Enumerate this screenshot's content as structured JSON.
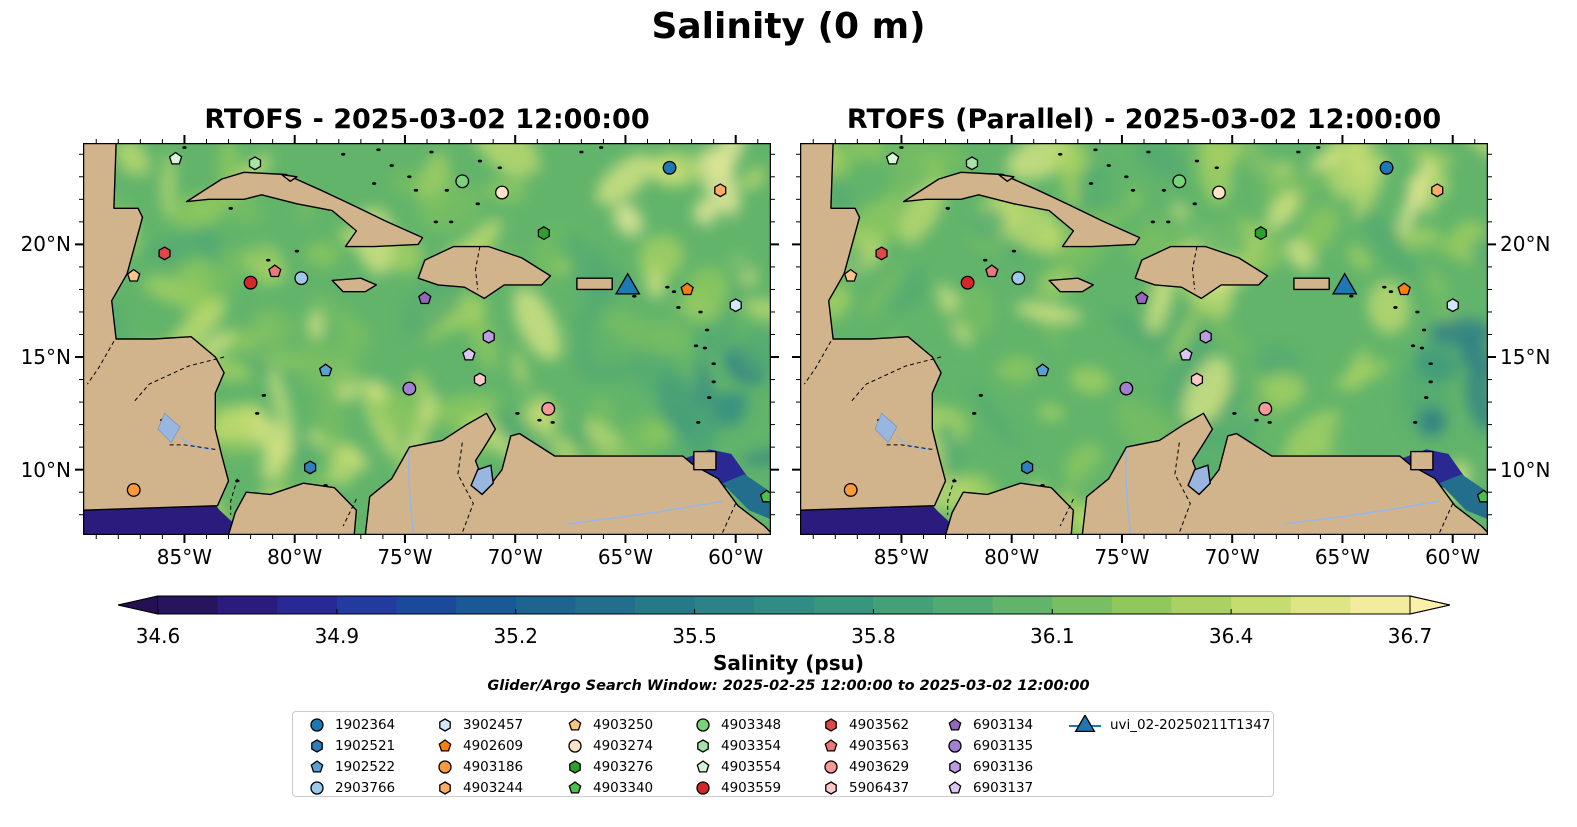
{
  "title": "Salinity (0 m)",
  "panels": [
    {
      "id": "left",
      "title": "RTOFS - 2025-03-02 12:00:00"
    },
    {
      "id": "right",
      "title": "RTOFS (Parallel) - 2025-03-02 12:00:00"
    }
  ],
  "map": {
    "extent": {
      "lon_min": -89.6,
      "lon_max": -58.4,
      "lat_min": 7.1,
      "lat_max": 24.5
    },
    "lon_ticks": [
      {
        "value": -85,
        "label": "85°W"
      },
      {
        "value": -80,
        "label": "80°W"
      },
      {
        "value": -75,
        "label": "75°W"
      },
      {
        "value": -70,
        "label": "70°W"
      },
      {
        "value": -65,
        "label": "65°W"
      },
      {
        "value": -60,
        "label": "60°W"
      }
    ],
    "lat_ticks": [
      {
        "value": 10,
        "label": "10°N"
      },
      {
        "value": 15,
        "label": "15°N"
      },
      {
        "value": 20,
        "label": "20°N"
      }
    ],
    "land_color": "#d2b48c",
    "lake_color": "#98b6e0"
  },
  "colorbar": {
    "min": 34.6,
    "max": 36.7,
    "tick_values": [
      34.6,
      34.9,
      35.2,
      35.5,
      35.8,
      36.1,
      36.4,
      36.7
    ],
    "tick_labels": [
      "34.6",
      "34.9",
      "35.2",
      "35.5",
      "35.8",
      "36.1",
      "36.4",
      "36.7"
    ],
    "label": "Salinity (psu)",
    "colors": [
      "#27145f",
      "#2b1b7d",
      "#2a2994",
      "#233a9e",
      "#1b4a9c",
      "#1b5896",
      "#1f6390",
      "#236e8c",
      "#277889",
      "#2c8287",
      "#318c84",
      "#38967f",
      "#43a079",
      "#51aa72",
      "#62b46b",
      "#78be62",
      "#90c85e",
      "#aad262",
      "#c4dc70",
      "#dde586",
      "#f3ec9e"
    ],
    "under_color": "#241052",
    "over_color": "#fbf0a8"
  },
  "search_window": "Glider/Argo Search Window: 2025-02-25 12:00:00 to 2025-03-02 12:00:00",
  "platforms": [
    {
      "name": "1902364",
      "marker": "circle",
      "color": "#1f77b4",
      "lon": -63.0,
      "lat": 23.4
    },
    {
      "name": "1902521",
      "marker": "hexagon",
      "color": "#2f7fbf",
      "lon": -79.3,
      "lat": 10.1
    },
    {
      "name": "1902522",
      "marker": "pentagon",
      "color": "#5a9fd4",
      "lon": -78.6,
      "lat": 14.4
    },
    {
      "name": "2903766",
      "marker": "circle",
      "color": "#9ec9ea",
      "lon": -79.7,
      "lat": 18.5
    },
    {
      "name": "3902457",
      "marker": "hexagon",
      "color": "#cfe7f8",
      "lon": -60.0,
      "lat": 17.3
    },
    {
      "name": "4902609",
      "marker": "pentagon",
      "color": "#ff7f0e",
      "lon": -62.2,
      "lat": 18.0
    },
    {
      "name": "4903186",
      "marker": "circle",
      "color": "#ff9a3c",
      "lon": -87.3,
      "lat": 9.1
    },
    {
      "name": "4903244",
      "marker": "hexagon",
      "color": "#ffad66",
      "lon": -60.7,
      "lat": 22.4
    },
    {
      "name": "4903250",
      "marker": "pentagon",
      "color": "#ffc48a",
      "lon": -87.3,
      "lat": 18.6
    },
    {
      "name": "4903274",
      "marker": "circle",
      "color": "#ffe3c6",
      "lon": -70.6,
      "lat": 22.3
    },
    {
      "name": "4903276",
      "marker": "hexagon",
      "color": "#2ca02c",
      "lon": -68.7,
      "lat": 20.5
    },
    {
      "name": "4903340",
      "marker": "pentagon",
      "color": "#4cbf4c",
      "lon": -58.6,
      "lat": 8.8
    },
    {
      "name": "4903348",
      "marker": "circle",
      "color": "#7ad27a",
      "lon": -72.4,
      "lat": 22.8
    },
    {
      "name": "4903354",
      "marker": "hexagon",
      "color": "#a6e3a6",
      "lon": -81.8,
      "lat": 23.6
    },
    {
      "name": "4903554",
      "marker": "pentagon",
      "color": "#d7f5d7",
      "lon": -85.4,
      "lat": 23.8
    },
    {
      "name": "4903559",
      "marker": "circle",
      "color": "#d62728",
      "lon": -82.0,
      "lat": 18.3
    },
    {
      "name": "4903562",
      "marker": "hexagon",
      "color": "#e04848",
      "lon": -85.9,
      "lat": 19.6
    },
    {
      "name": "4903563",
      "marker": "pentagon",
      "color": "#ea7878",
      "lon": -80.9,
      "lat": 18.8
    },
    {
      "name": "4903629",
      "marker": "circle",
      "color": "#f59a9a",
      "lon": -68.5,
      "lat": 12.7
    },
    {
      "name": "5906437",
      "marker": "hexagon",
      "color": "#fcc9c9",
      "lon": -71.6,
      "lat": 14.0
    },
    {
      "name": "6903134",
      "marker": "pentagon",
      "color": "#9467bd",
      "lon": -74.1,
      "lat": 17.6
    },
    {
      "name": "6903135",
      "marker": "circle",
      "color": "#a27fd0",
      "lon": -74.8,
      "lat": 13.6
    },
    {
      "name": "6903136",
      "marker": "hexagon",
      "color": "#bb9be2",
      "lon": -71.2,
      "lat": 15.9
    },
    {
      "name": "6903137",
      "marker": "pentagon",
      "color": "#dcc6f3",
      "lon": -72.1,
      "lat": 15.1
    },
    {
      "name": "uvi_02-20250211T1347",
      "marker": "triangle",
      "color": "#1f77b4",
      "lon": -64.9,
      "lat": 18.1
    }
  ]
}
